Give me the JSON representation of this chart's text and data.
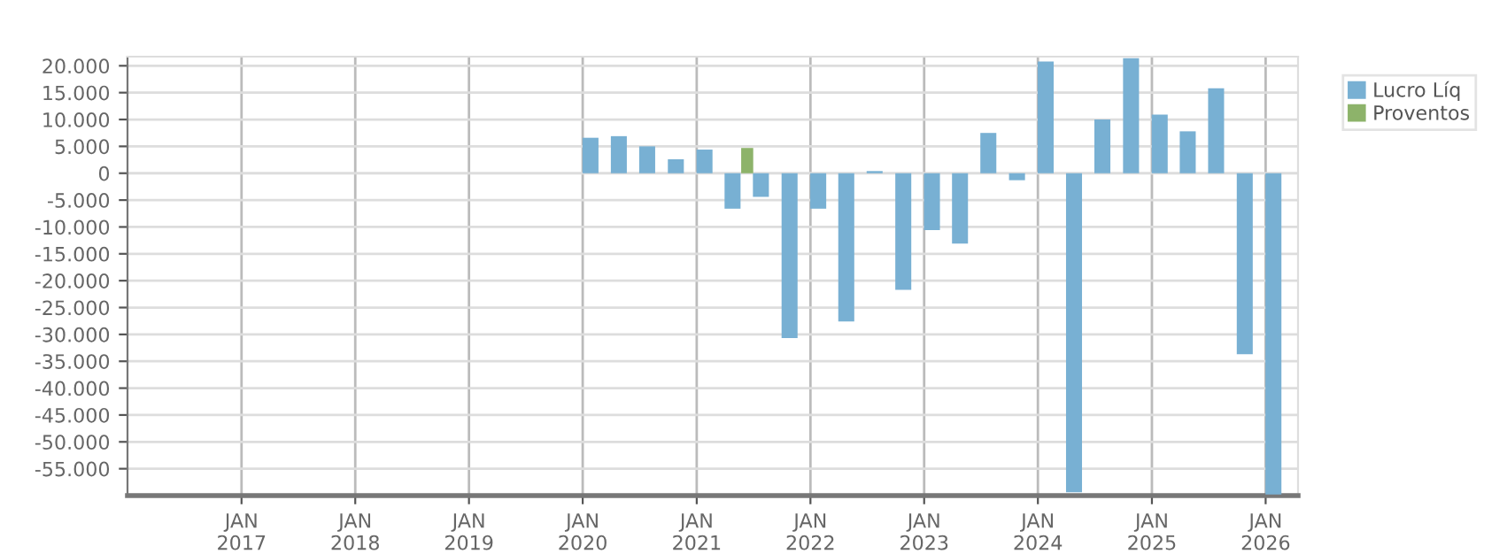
{
  "chart_data": {
    "type": "bar",
    "series": [
      {
        "name": "Lucro Líq",
        "color": "#78b0d3",
        "x": [
          "2020-01-26",
          "2020-04-26",
          "2020-07-26",
          "2020-10-26",
          "2021-01-26",
          "2021-04-26",
          "2021-07-26",
          "2021-10-26",
          "2022-01-26",
          "2022-04-26",
          "2022-07-26",
          "2022-10-26",
          "2023-01-26",
          "2023-04-26",
          "2023-07-26",
          "2023-10-26",
          "2024-01-26",
          "2024-04-26",
          "2024-07-26",
          "2024-10-26",
          "2025-01-26",
          "2025-04-26",
          "2025-07-26",
          "2025-10-26",
          "2026-01-26"
        ],
        "values": [
          6600,
          6900,
          5000,
          2600,
          4400,
          -6600,
          -4400,
          -30700,
          -6600,
          -27600,
          400,
          -21700,
          -10600,
          -13100,
          7500,
          -1300,
          20800,
          -59400,
          10000,
          21400,
          10900,
          7800,
          15800,
          -33700,
          -59800
        ]
      },
      {
        "name": "Proventos",
        "color": "#8db36a",
        "x": [
          "2020-03-12",
          "2020-06-12",
          "2020-09-12",
          "2020-12-12",
          "2021-03-12",
          "2021-06-12",
          "2021-09-12",
          "2021-12-12",
          "2022-03-12",
          "2022-06-12",
          "2022-09-12",
          "2022-12-12",
          "2023-03-12",
          "2023-06-12",
          "2023-09-12",
          "2023-12-12",
          "2024-03-12",
          "2024-06-12",
          "2024-09-12",
          "2024-12-12",
          "2025-03-12",
          "2025-06-12",
          "2025-09-12",
          "2025-12-12",
          "2026-03-12"
        ],
        "values": [
          0,
          0,
          0,
          0,
          0,
          4700,
          0,
          0,
          0,
          0,
          0,
          0,
          0,
          0,
          0,
          0,
          0,
          0,
          0,
          0,
          0,
          0,
          0,
          0,
          0
        ]
      }
    ],
    "xlim": [
      "2016-01-01",
      "2026-04-15"
    ],
    "xticks": [
      {
        "value": "2017-01-01",
        "label": "JAN\n2017"
      },
      {
        "value": "2018-01-01",
        "label": "JAN\n2018"
      },
      {
        "value": "2019-01-01",
        "label": "JAN\n2019"
      },
      {
        "value": "2020-01-01",
        "label": "JAN\n2020"
      },
      {
        "value": "2021-01-01",
        "label": "JAN\n2021"
      },
      {
        "value": "2022-01-01",
        "label": "JAN\n2022"
      },
      {
        "value": "2023-01-01",
        "label": "JAN\n2023"
      },
      {
        "value": "2024-01-01",
        "label": "JAN\n2024"
      },
      {
        "value": "2025-01-01",
        "label": "JAN\n2025"
      },
      {
        "value": "2026-01-01",
        "label": "JAN\n2026"
      }
    ],
    "ylim": [
      -60000,
      21700
    ],
    "yticks": [
      {
        "value": 20000,
        "label": "20.000"
      },
      {
        "value": 15000,
        "label": "15.000"
      },
      {
        "value": 10000,
        "label": "10.000"
      },
      {
        "value": 5000,
        "label": "5.000"
      },
      0,
      {
        "value": -5000,
        "label": "-5.000"
      },
      {
        "value": -10000,
        "label": "-10.000"
      },
      {
        "value": -15000,
        "label": "-15.000"
      },
      {
        "value": -20000,
        "label": "-20.000"
      },
      {
        "value": -25000,
        "label": "-25.000"
      },
      {
        "value": -30000,
        "label": "-30.000"
      },
      {
        "value": -35000,
        "label": "-35.000"
      },
      {
        "value": -40000,
        "label": "-40.000"
      },
      {
        "value": -45000,
        "label": "-45.000"
      },
      {
        "value": -50000,
        "label": "-50.000"
      },
      {
        "value": -55000,
        "label": "-55.000"
      }
    ],
    "grid": true,
    "legend": "top right"
  }
}
